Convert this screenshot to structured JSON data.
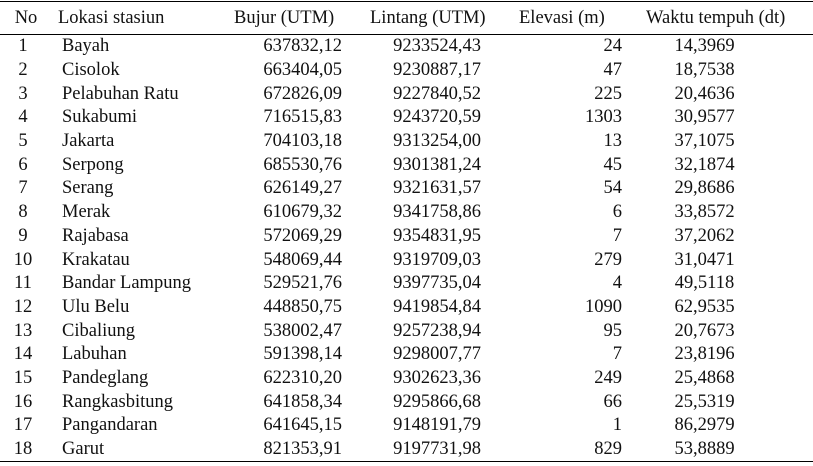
{
  "table": {
    "headers": {
      "no": "No",
      "lokasi": "Lokasi stasiun",
      "bujur": "Bujur (UTM)",
      "lintang": "Lintang (UTM)",
      "elevasi": "Elevasi (m)",
      "waktu": "Waktu tempuh (dt)"
    },
    "rows": [
      {
        "no": "1",
        "lokasi": "Bayah",
        "bujur": "637832,12",
        "lintang": "9233524,43",
        "elevasi": "24",
        "waktu": "14,3969"
      },
      {
        "no": "2",
        "lokasi": "Cisolok",
        "bujur": "663404,05",
        "lintang": "9230887,17",
        "elevasi": "47",
        "waktu": "18,7538"
      },
      {
        "no": "3",
        "lokasi": "Pelabuhan Ratu",
        "bujur": "672826,09",
        "lintang": "9227840,52",
        "elevasi": "225",
        "waktu": "20,4636"
      },
      {
        "no": "4",
        "lokasi": "Sukabumi",
        "bujur": "716515,83",
        "lintang": "9243720,59",
        "elevasi": "1303",
        "waktu": "30,9577"
      },
      {
        "no": "5",
        "lokasi": "Jakarta",
        "bujur": "704103,18",
        "lintang": "9313254,00",
        "elevasi": "13",
        "waktu": "37,1075"
      },
      {
        "no": "6",
        "lokasi": "Serpong",
        "bujur": "685530,76",
        "lintang": "9301381,24",
        "elevasi": "45",
        "waktu": "32,1874"
      },
      {
        "no": "7",
        "lokasi": "Serang",
        "bujur": "626149,27",
        "lintang": "9321631,57",
        "elevasi": "54",
        "waktu": "29,8686"
      },
      {
        "no": "8",
        "lokasi": "Merak",
        "bujur": "610679,32",
        "lintang": "9341758,86",
        "elevasi": "6",
        "waktu": "33,8572"
      },
      {
        "no": "9",
        "lokasi": "Rajabasa",
        "bujur": "572069,29",
        "lintang": "9354831,95",
        "elevasi": "7",
        "waktu": "37,2062"
      },
      {
        "no": "10",
        "lokasi": "Krakatau",
        "bujur": "548069,44",
        "lintang": "9319709,03",
        "elevasi": "279",
        "waktu": "31,0471"
      },
      {
        "no": "11",
        "lokasi": "Bandar Lampung",
        "bujur": "529521,76",
        "lintang": "9397735,04",
        "elevasi": "4",
        "waktu": "49,5118"
      },
      {
        "no": "12",
        "lokasi": "Ulu Belu",
        "bujur": "448850,75",
        "lintang": "9419854,84",
        "elevasi": "1090",
        "waktu": "62,9535"
      },
      {
        "no": "13",
        "lokasi": "Cibaliung",
        "bujur": "538002,47",
        "lintang": "9257238,94",
        "elevasi": "95",
        "waktu": "20,7673"
      },
      {
        "no": "14",
        "lokasi": "Labuhan",
        "bujur": "591398,14",
        "lintang": "9298007,77",
        "elevasi": "7",
        "waktu": "23,8196"
      },
      {
        "no": "15",
        "lokasi": "Pandeglang",
        "bujur": "622310,20",
        "lintang": "9302623,36",
        "elevasi": "249",
        "waktu": "25,4868"
      },
      {
        "no": "16",
        "lokasi": "Rangkasbitung",
        "bujur": "641858,34",
        "lintang": "9295866,68",
        "elevasi": "66",
        "waktu": "25,5319"
      },
      {
        "no": "17",
        "lokasi": "Pangandaran",
        "bujur": "641645,15",
        "lintang": "9148191,79",
        "elevasi": "1",
        "waktu": "86,2979"
      },
      {
        "no": "18",
        "lokasi": "Garut",
        "bujur": "821353,91",
        "lintang": "9197731,98",
        "elevasi": "829",
        "waktu": "53,8889"
      }
    ]
  }
}
